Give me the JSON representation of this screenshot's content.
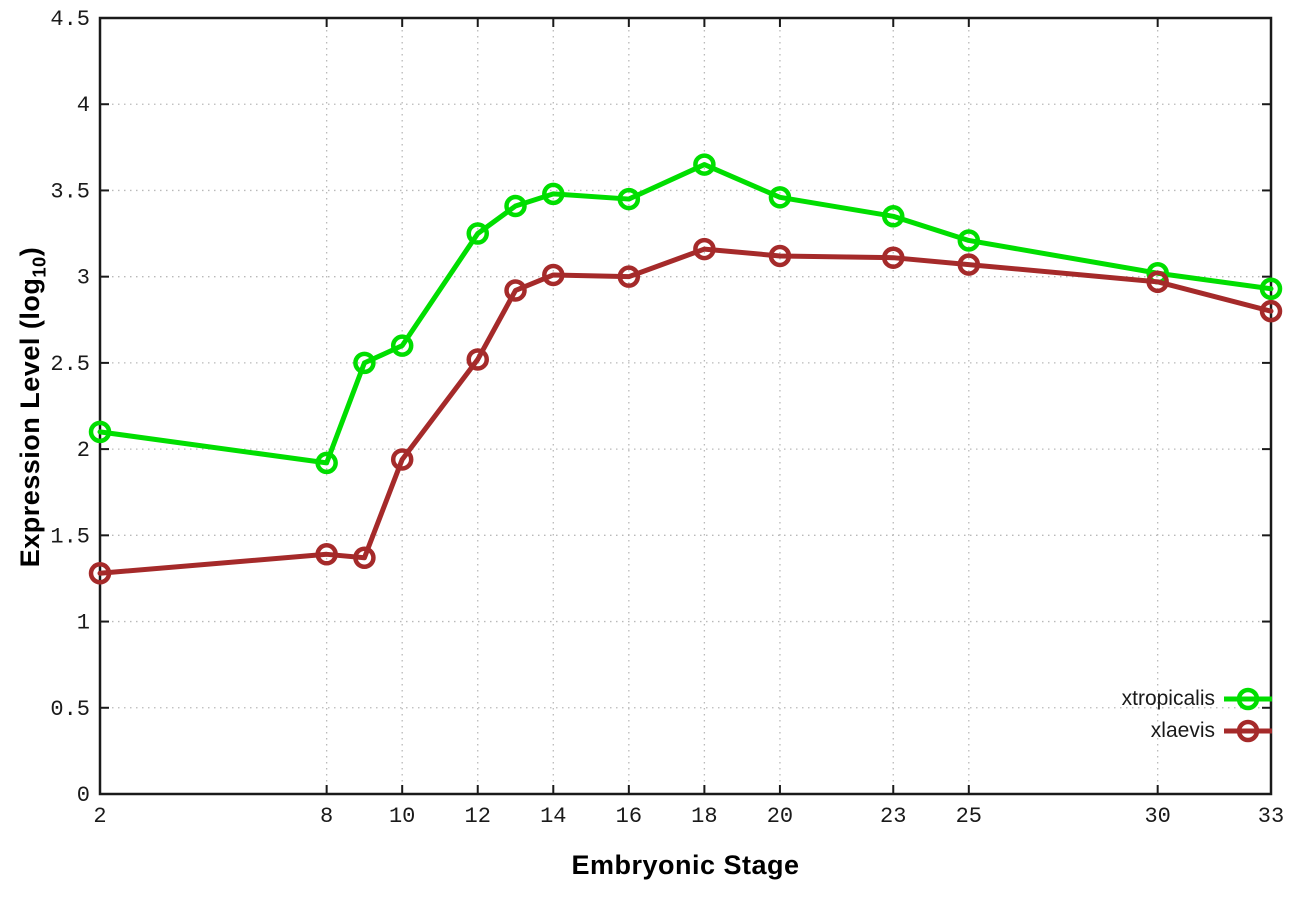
{
  "page": {
    "background": "#ffffff"
  },
  "chart_data": {
    "type": "line",
    "title": "",
    "xlabel": "Embryonic Stage",
    "ylabel_prefix": "Expression Level (log",
    "ylabel_sub": "10",
    "ylabel_suffix": ")",
    "x_axis": {
      "min": 2,
      "max": 33,
      "ticks": [
        2,
        8,
        10,
        12,
        14,
        16,
        18,
        20,
        23,
        25,
        30,
        33
      ]
    },
    "y_axis": {
      "min": 0,
      "max": 4.5,
      "ticks": [
        0,
        0.5,
        1,
        1.5,
        2,
        2.5,
        3,
        3.5,
        4,
        4.5
      ]
    },
    "grid": "dotted",
    "grid_color": "#b9b9b9",
    "axis_color": "#1a1a1a",
    "legend_position": "inside-bottom-right",
    "x": [
      2,
      8,
      9,
      10,
      12,
      13,
      14,
      16,
      18,
      20,
      23,
      25,
      30,
      33
    ],
    "series": [
      {
        "name": "xtropicalis",
        "color": "#00DE00",
        "marker": "open-circle",
        "values": [
          2.1,
          1.92,
          2.5,
          2.6,
          3.25,
          3.41,
          3.48,
          3.45,
          3.65,
          3.46,
          3.35,
          3.21,
          3.02,
          2.93
        ]
      },
      {
        "name": "xlaevis",
        "color": "#A52A2A",
        "marker": "open-circle",
        "values": [
          1.28,
          1.39,
          1.37,
          1.94,
          2.52,
          2.92,
          3.01,
          3.0,
          3.16,
          3.12,
          3.11,
          3.07,
          2.97,
          2.8
        ]
      }
    ]
  }
}
